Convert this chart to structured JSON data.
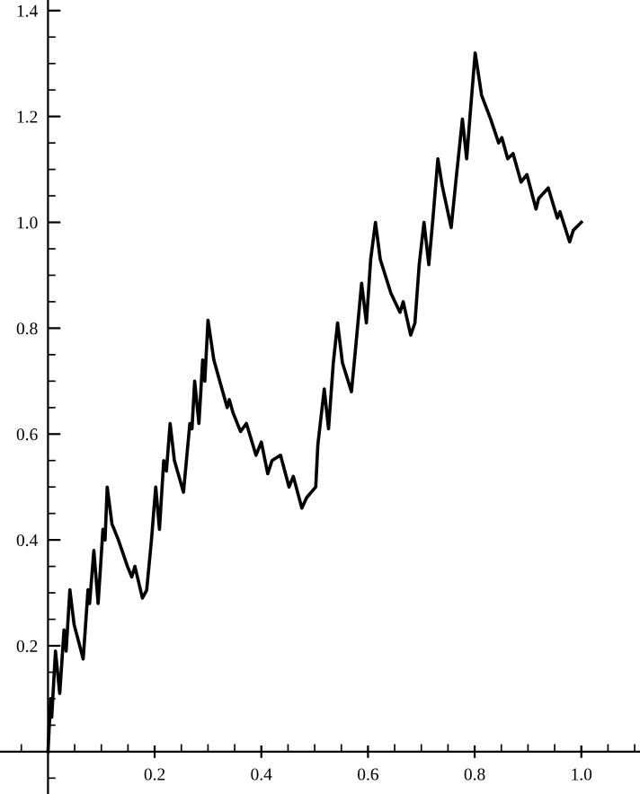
{
  "chart_data": {
    "type": "line",
    "color": "#000000",
    "x": [
      0,
      0.005,
      0.007,
      0.014,
      0.022,
      0.03,
      0.034,
      0.041,
      0.049,
      0.066,
      0.075,
      0.078,
      0.086,
      0.094,
      0.103,
      0.107,
      0.111,
      0.12,
      0.132,
      0.149,
      0.157,
      0.163,
      0.177,
      0.185,
      0.194,
      0.202,
      0.209,
      0.217,
      0.222,
      0.229,
      0.237,
      0.254,
      0.266,
      0.27,
      0.275,
      0.283,
      0.29,
      0.294,
      0.3,
      0.311,
      0.322,
      0.336,
      0.34,
      0.347,
      0.361,
      0.372,
      0.39,
      0.4,
      0.412,
      0.42,
      0.436,
      0.452,
      0.46,
      0.476,
      0.485,
      0.502,
      0.506,
      0.518,
      0.526,
      0.535,
      0.543,
      0.552,
      0.569,
      0.577,
      0.588,
      0.597,
      0.605,
      0.614,
      0.623,
      0.643,
      0.66,
      0.666,
      0.68,
      0.688,
      0.696,
      0.705,
      0.714,
      0.722,
      0.731,
      0.739,
      0.756,
      0.765,
      0.777,
      0.785,
      0.792,
      0.801,
      0.813,
      0.83,
      0.845,
      0.851,
      0.862,
      0.872,
      0.887,
      0.898,
      0.915,
      0.92,
      0.938,
      0.955,
      0.96,
      0.978,
      0.985,
      1.0
    ],
    "values": [
      0,
      0.1,
      0.065,
      0.19,
      0.11,
      0.23,
      0.19,
      0.306,
      0.24,
      0.175,
      0.306,
      0.28,
      0.38,
      0.28,
      0.42,
      0.4,
      0.5,
      0.43,
      0.4,
      0.35,
      0.33,
      0.35,
      0.29,
      0.305,
      0.4,
      0.5,
      0.42,
      0.55,
      0.53,
      0.62,
      0.55,
      0.49,
      0.62,
      0.61,
      0.7,
      0.62,
      0.74,
      0.7,
      0.815,
      0.74,
      0.7,
      0.65,
      0.665,
      0.64,
      0.605,
      0.62,
      0.56,
      0.585,
      0.525,
      0.55,
      0.56,
      0.5,
      0.52,
      0.46,
      0.48,
      0.5,
      0.58,
      0.685,
      0.61,
      0.735,
      0.81,
      0.735,
      0.68,
      0.765,
      0.885,
      0.81,
      0.93,
      1.0,
      0.93,
      0.866,
      0.83,
      0.85,
      0.787,
      0.81,
      0.92,
      1.0,
      0.92,
      1.01,
      1.12,
      1.07,
      0.99,
      1.08,
      1.195,
      1.12,
      1.21,
      1.32,
      1.24,
      1.195,
      1.15,
      1.16,
      1.12,
      1.13,
      1.076,
      1.09,
      1.025,
      1.045,
      1.065,
      1.008,
      1.02,
      0.963,
      0.985,
      1.0
    ],
    "xlim": [
      -0.09,
      1.11
    ],
    "ylim": [
      -0.08,
      1.42
    ],
    "xticks": [
      0.2,
      0.4,
      0.6,
      0.8,
      {
        "value": 1,
        "label": "1.0"
      }
    ],
    "yticks": [
      0.2,
      0.4,
      0.6,
      0.8,
      {
        "value": 1,
        "label": "1.0"
      },
      1.2,
      1.4
    ],
    "grid": false,
    "marker": "none",
    "line_style": "solid"
  }
}
